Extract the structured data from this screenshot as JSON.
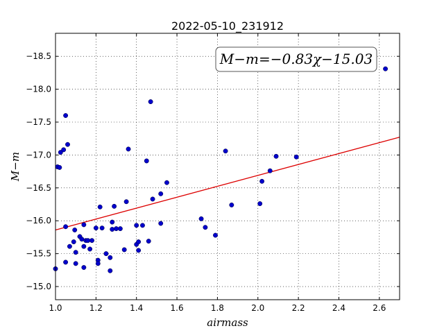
{
  "chart_data": {
    "type": "scatter",
    "title": "2022-05-10_231912",
    "xlabel": "airmass",
    "ylabel": "M−m",
    "xlim": [
      1.0,
      2.7
    ],
    "ylim": [
      -18.85,
      -14.8
    ],
    "y_inverted": true,
    "grid": true,
    "grid_style": "dotted",
    "x_ticks": [
      "1.0",
      "1.2",
      "1.4",
      "1.6",
      "1.8",
      "2.0",
      "2.2",
      "2.4",
      "2.6"
    ],
    "x_tick_values": [
      1.0,
      1.2,
      1.4,
      1.6,
      1.8,
      2.0,
      2.2,
      2.4,
      2.6
    ],
    "y_ticks": [
      "−15.0",
      "−15.5",
      "−16.0",
      "−16.5",
      "−17.0",
      "−17.5",
      "−18.0",
      "−18.5"
    ],
    "y_tick_values": [
      -15.0,
      -15.5,
      -16.0,
      -16.5,
      -17.0,
      -17.5,
      -18.0,
      -18.5
    ],
    "annotation": "M−m=−0.83χ−15.03",
    "fit": {
      "slope": -0.83,
      "intercept": -15.03,
      "color": "#dd0000"
    },
    "marker_color": "#0000cc",
    "points": [
      [
        1.0,
        -15.27
      ],
      [
        1.01,
        -16.82
      ],
      [
        1.02,
        -16.81
      ],
      [
        1.025,
        -17.04
      ],
      [
        1.04,
        -17.08
      ],
      [
        1.05,
        -15.91
      ],
      [
        1.05,
        -17.6
      ],
      [
        1.05,
        -15.37
      ],
      [
        1.06,
        -17.16
      ],
      [
        1.07,
        -15.61
      ],
      [
        1.09,
        -15.68
      ],
      [
        1.095,
        -15.86
      ],
      [
        1.1,
        -15.35
      ],
      [
        1.1,
        -15.52
      ],
      [
        1.12,
        -15.76
      ],
      [
        1.13,
        -15.72
      ],
      [
        1.14,
        -15.29
      ],
      [
        1.14,
        -15.61
      ],
      [
        1.14,
        -15.94
      ],
      [
        1.15,
        -15.7
      ],
      [
        1.16,
        -15.7
      ],
      [
        1.17,
        -15.57
      ],
      [
        1.18,
        -15.7
      ],
      [
        1.2,
        -15.89
      ],
      [
        1.21,
        -15.4
      ],
      [
        1.21,
        -15.35
      ],
      [
        1.22,
        -16.21
      ],
      [
        1.23,
        -15.89
      ],
      [
        1.25,
        -15.5
      ],
      [
        1.27,
        -15.24
      ],
      [
        1.27,
        -15.44
      ],
      [
        1.28,
        -15.87
      ],
      [
        1.28,
        -15.98
      ],
      [
        1.29,
        -16.22
      ],
      [
        1.3,
        -15.88
      ],
      [
        1.32,
        -15.88
      ],
      [
        1.34,
        -15.56
      ],
      [
        1.35,
        -16.29
      ],
      [
        1.36,
        -17.09
      ],
      [
        1.4,
        -15.93
      ],
      [
        1.4,
        -15.64
      ],
      [
        1.41,
        -15.68
      ],
      [
        1.41,
        -15.55
      ],
      [
        1.43,
        -15.93
      ],
      [
        1.45,
        -16.91
      ],
      [
        1.46,
        -15.69
      ],
      [
        1.47,
        -17.81
      ],
      [
        1.48,
        -16.33
      ],
      [
        1.52,
        -16.41
      ],
      [
        1.52,
        -15.96
      ],
      [
        1.55,
        -16.58
      ],
      [
        1.72,
        -16.03
      ],
      [
        1.74,
        -15.9
      ],
      [
        1.79,
        -15.78
      ],
      [
        1.84,
        -17.06
      ],
      [
        1.87,
        -16.24
      ],
      [
        2.01,
        -16.26
      ],
      [
        2.02,
        -16.6
      ],
      [
        2.06,
        -16.76
      ],
      [
        2.09,
        -16.98
      ],
      [
        2.19,
        -16.97
      ],
      [
        2.63,
        -18.31
      ]
    ]
  }
}
